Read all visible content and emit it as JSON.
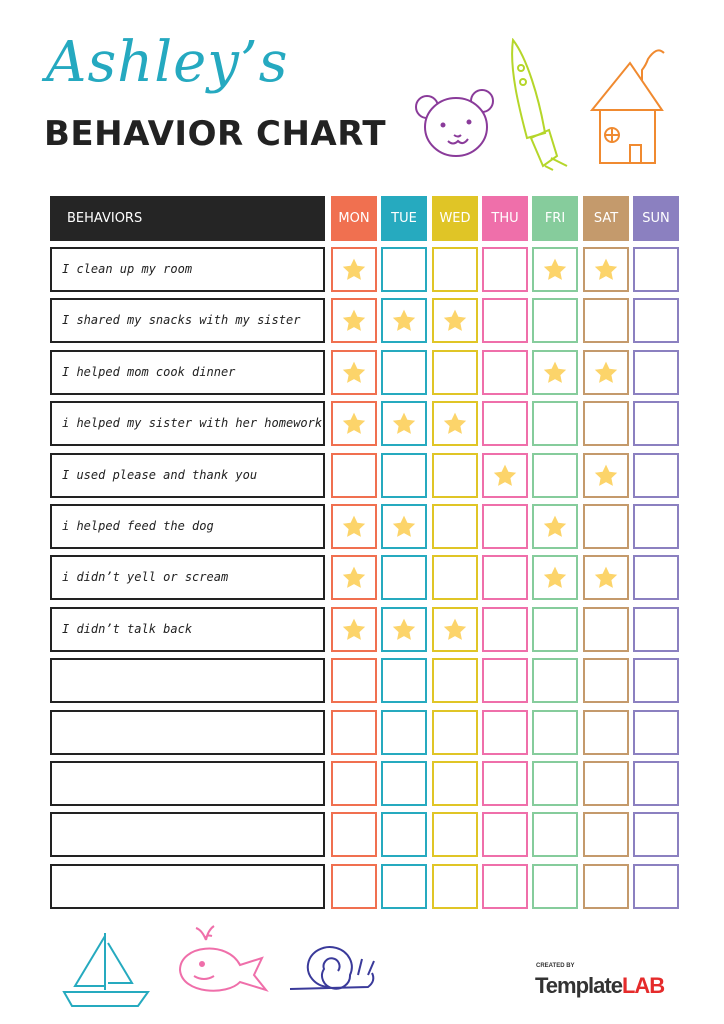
{
  "header": {
    "name": "Ashley’s",
    "title": "BEHAVIOR CHART"
  },
  "table": {
    "behaviors_header": "BEHAVIORS",
    "days": [
      {
        "label": "MON",
        "color": "#f07050"
      },
      {
        "label": "TUE",
        "color": "#26aabf"
      },
      {
        "label": "WED",
        "color": "#e0c526"
      },
      {
        "label": "THU",
        "color": "#ef6faa"
      },
      {
        "label": "FRI",
        "color": "#86cc9c"
      },
      {
        "label": "SAT",
        "color": "#c49a6c"
      },
      {
        "label": "SUN",
        "color": "#8b80c0"
      }
    ],
    "star_color": "#fcd46a",
    "rows": [
      {
        "behavior": "I clean up my room",
        "stars": [
          "MON",
          "FRI",
          "SAT"
        ]
      },
      {
        "behavior": "I shared my snacks with my sister",
        "stars": [
          "MON",
          "TUE",
          "WED"
        ]
      },
      {
        "behavior": "I helped mom cook dinner",
        "stars": [
          "MON",
          "FRI",
          "SAT"
        ]
      },
      {
        "behavior": "i helped my sister with her homework",
        "stars": [
          "MON",
          "TUE",
          "WED"
        ]
      },
      {
        "behavior": "I used please and thank you",
        "stars": [
          "THU",
          "SAT"
        ]
      },
      {
        "behavior": "i helped feed the dog",
        "stars": [
          "MON",
          "TUE",
          "FRI"
        ]
      },
      {
        "behavior": "i didn’t yell or scream",
        "stars": [
          "MON",
          "FRI",
          "SAT"
        ]
      },
      {
        "behavior": "I didn’t talk back",
        "stars": [
          "MON",
          "TUE",
          "WED"
        ]
      },
      {
        "behavior": "",
        "stars": []
      },
      {
        "behavior": "",
        "stars": []
      },
      {
        "behavior": "",
        "stars": []
      },
      {
        "behavior": "",
        "stars": []
      },
      {
        "behavior": "",
        "stars": []
      }
    ]
  },
  "decorations": [
    "bear-icon",
    "rocket-icon",
    "house-icon",
    "sailboat-icon",
    "whale-icon",
    "snail-icon"
  ],
  "logo": {
    "created_by": "CREATED BY",
    "template": "Template",
    "lab": "LAB",
    "lab_color": "#e52b2b"
  }
}
